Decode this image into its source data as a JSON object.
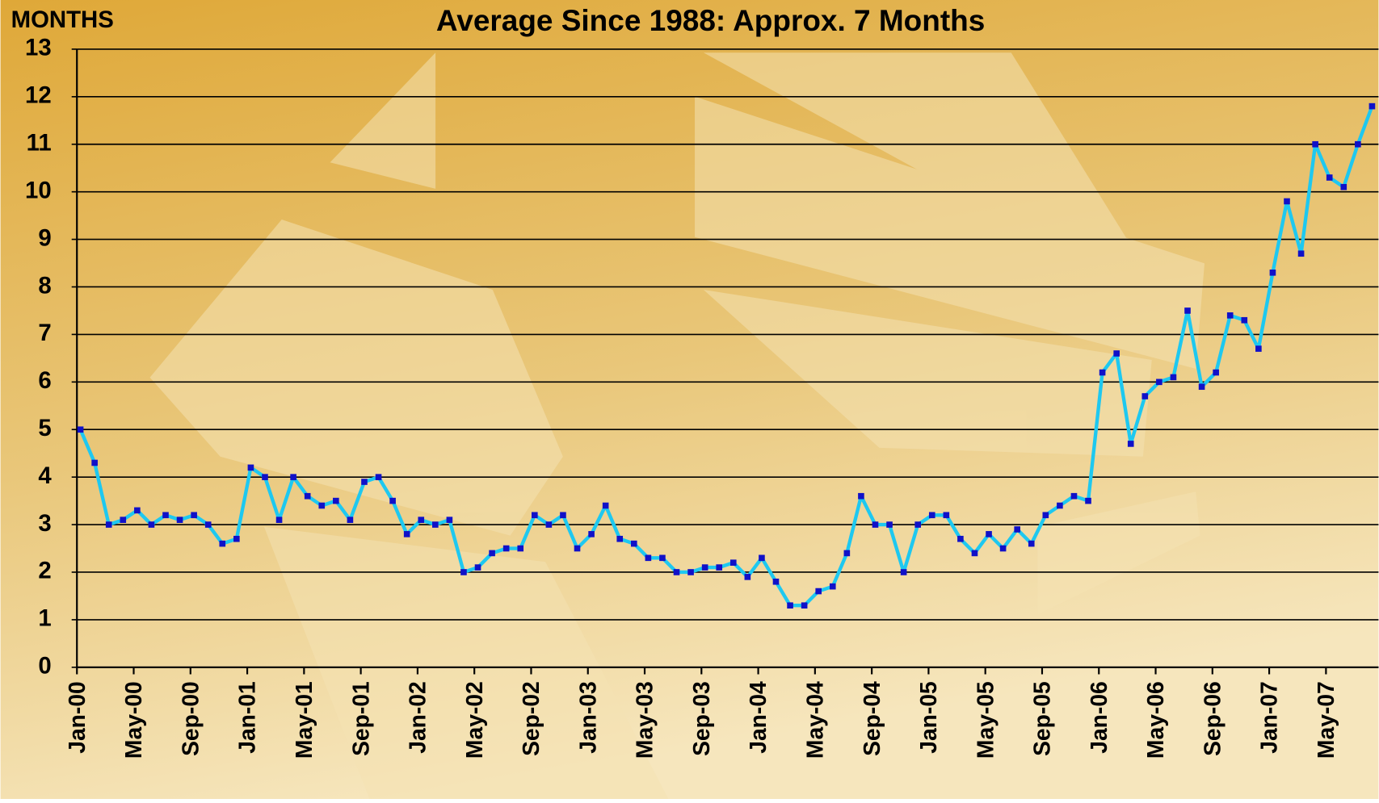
{
  "chart_data": {
    "type": "line",
    "title": "Average Since 1988: Approx. 7 Months",
    "y_label": "MONTHS",
    "categories": [
      "Jan-00",
      null,
      null,
      null,
      "May-00",
      null,
      null,
      null,
      "Sep-00",
      null,
      null,
      null,
      "Jan-01",
      null,
      null,
      null,
      "May-01",
      null,
      null,
      null,
      "Sep-01",
      null,
      null,
      null,
      "Jan-02",
      null,
      null,
      null,
      "May-02",
      null,
      null,
      null,
      "Sep-02",
      null,
      null,
      null,
      "Jan-03",
      null,
      null,
      null,
      "May-03",
      null,
      null,
      null,
      "Sep-03",
      null,
      null,
      null,
      "Jan-04",
      null,
      null,
      null,
      "May-04",
      null,
      null,
      null,
      "Sep-04",
      null,
      null,
      null,
      "Jan-05",
      null,
      null,
      null,
      "May-05",
      null,
      null,
      null,
      "Sep-05",
      null,
      null,
      null,
      "Jan-06",
      null,
      null,
      null,
      "May-06",
      null,
      null,
      null,
      "Sep-06",
      null,
      null,
      null,
      "Jan-07",
      null,
      null,
      null,
      "May-07",
      null,
      null,
      null
    ],
    "values": [
      5.0,
      4.3,
      3.0,
      3.1,
      3.3,
      3.0,
      3.2,
      3.1,
      3.2,
      3.0,
      2.6,
      2.7,
      4.2,
      4.0,
      3.1,
      4.0,
      3.6,
      3.4,
      3.5,
      3.1,
      3.9,
      4.0,
      3.5,
      2.8,
      3.1,
      3.0,
      3.1,
      2.0,
      2.1,
      2.4,
      2.5,
      2.5,
      3.2,
      3.0,
      3.2,
      2.5,
      2.8,
      3.4,
      2.7,
      2.6,
      2.3,
      2.3,
      2.0,
      2.0,
      2.1,
      2.1,
      2.2,
      1.9,
      2.3,
      1.8,
      1.3,
      1.3,
      1.6,
      1.7,
      2.4,
      3.6,
      3.0,
      3.0,
      2.0,
      3.0,
      3.2,
      3.2,
      2.7,
      2.4,
      2.8,
      2.5,
      2.9,
      2.6,
      3.2,
      3.4,
      3.6,
      3.5,
      6.2,
      6.6,
      4.7,
      5.7,
      6.0,
      6.1,
      7.5,
      5.9,
      6.2,
      7.4,
      7.3,
      6.7,
      8.3,
      9.8,
      8.7,
      11.0,
      10.3,
      10.1,
      11.0,
      11.8
    ],
    "color": "#1ec8f0",
    "marker_color": "#1010c8",
    "ylim": [
      0,
      13
    ],
    "yticks": [
      0,
      1,
      2,
      3,
      4,
      5,
      6,
      7,
      8,
      9,
      10,
      11,
      12,
      13
    ],
    "grid": true
  }
}
